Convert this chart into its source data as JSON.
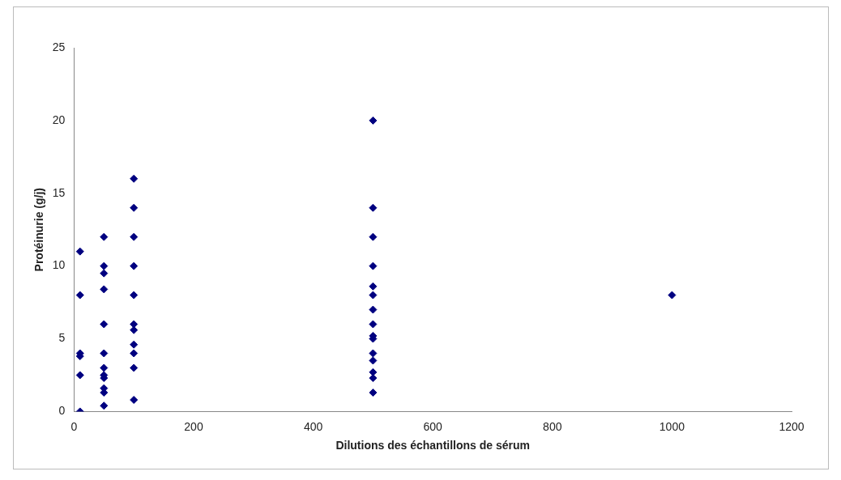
{
  "chart_data": {
    "type": "scatter",
    "xlabel": "Dilutions des échantillons de sérum",
    "ylabel": "Protéinurie (g/j)",
    "x": [
      10,
      10,
      10,
      10,
      10,
      10,
      50,
      50,
      50,
      50,
      50,
      50,
      50,
      50,
      50,
      50,
      50,
      50,
      100,
      100,
      100,
      100,
      100,
      100,
      100,
      100,
      100,
      100,
      100,
      500,
      500,
      500,
      500,
      500,
      500,
      500,
      500,
      500,
      500,
      500,
      500,
      500,
      500,
      500,
      1000
    ],
    "values": [
      11,
      8,
      4,
      3.8,
      2.5,
      0,
      12,
      10,
      9.5,
      8.4,
      6,
      4,
      3,
      2.5,
      2.3,
      1.6,
      1.3,
      0.4,
      16,
      14,
      12,
      10,
      8,
      6,
      5.6,
      4.6,
      4,
      3,
      0.8,
      20,
      14,
      12,
      10,
      8.6,
      8,
      7,
      6,
      5.2,
      5,
      4,
      3.5,
      2.7,
      2.3,
      1.3,
      8
    ],
    "color": "#000080",
    "marker": "diamond",
    "grid": false,
    "legend": false,
    "xlim": [
      0,
      1200
    ],
    "xticks": [
      0,
      200,
      400,
      600,
      800,
      1000,
      1200
    ],
    "ylim": [
      0,
      25
    ],
    "yticks": [
      0,
      5,
      10,
      15,
      20,
      25
    ]
  }
}
